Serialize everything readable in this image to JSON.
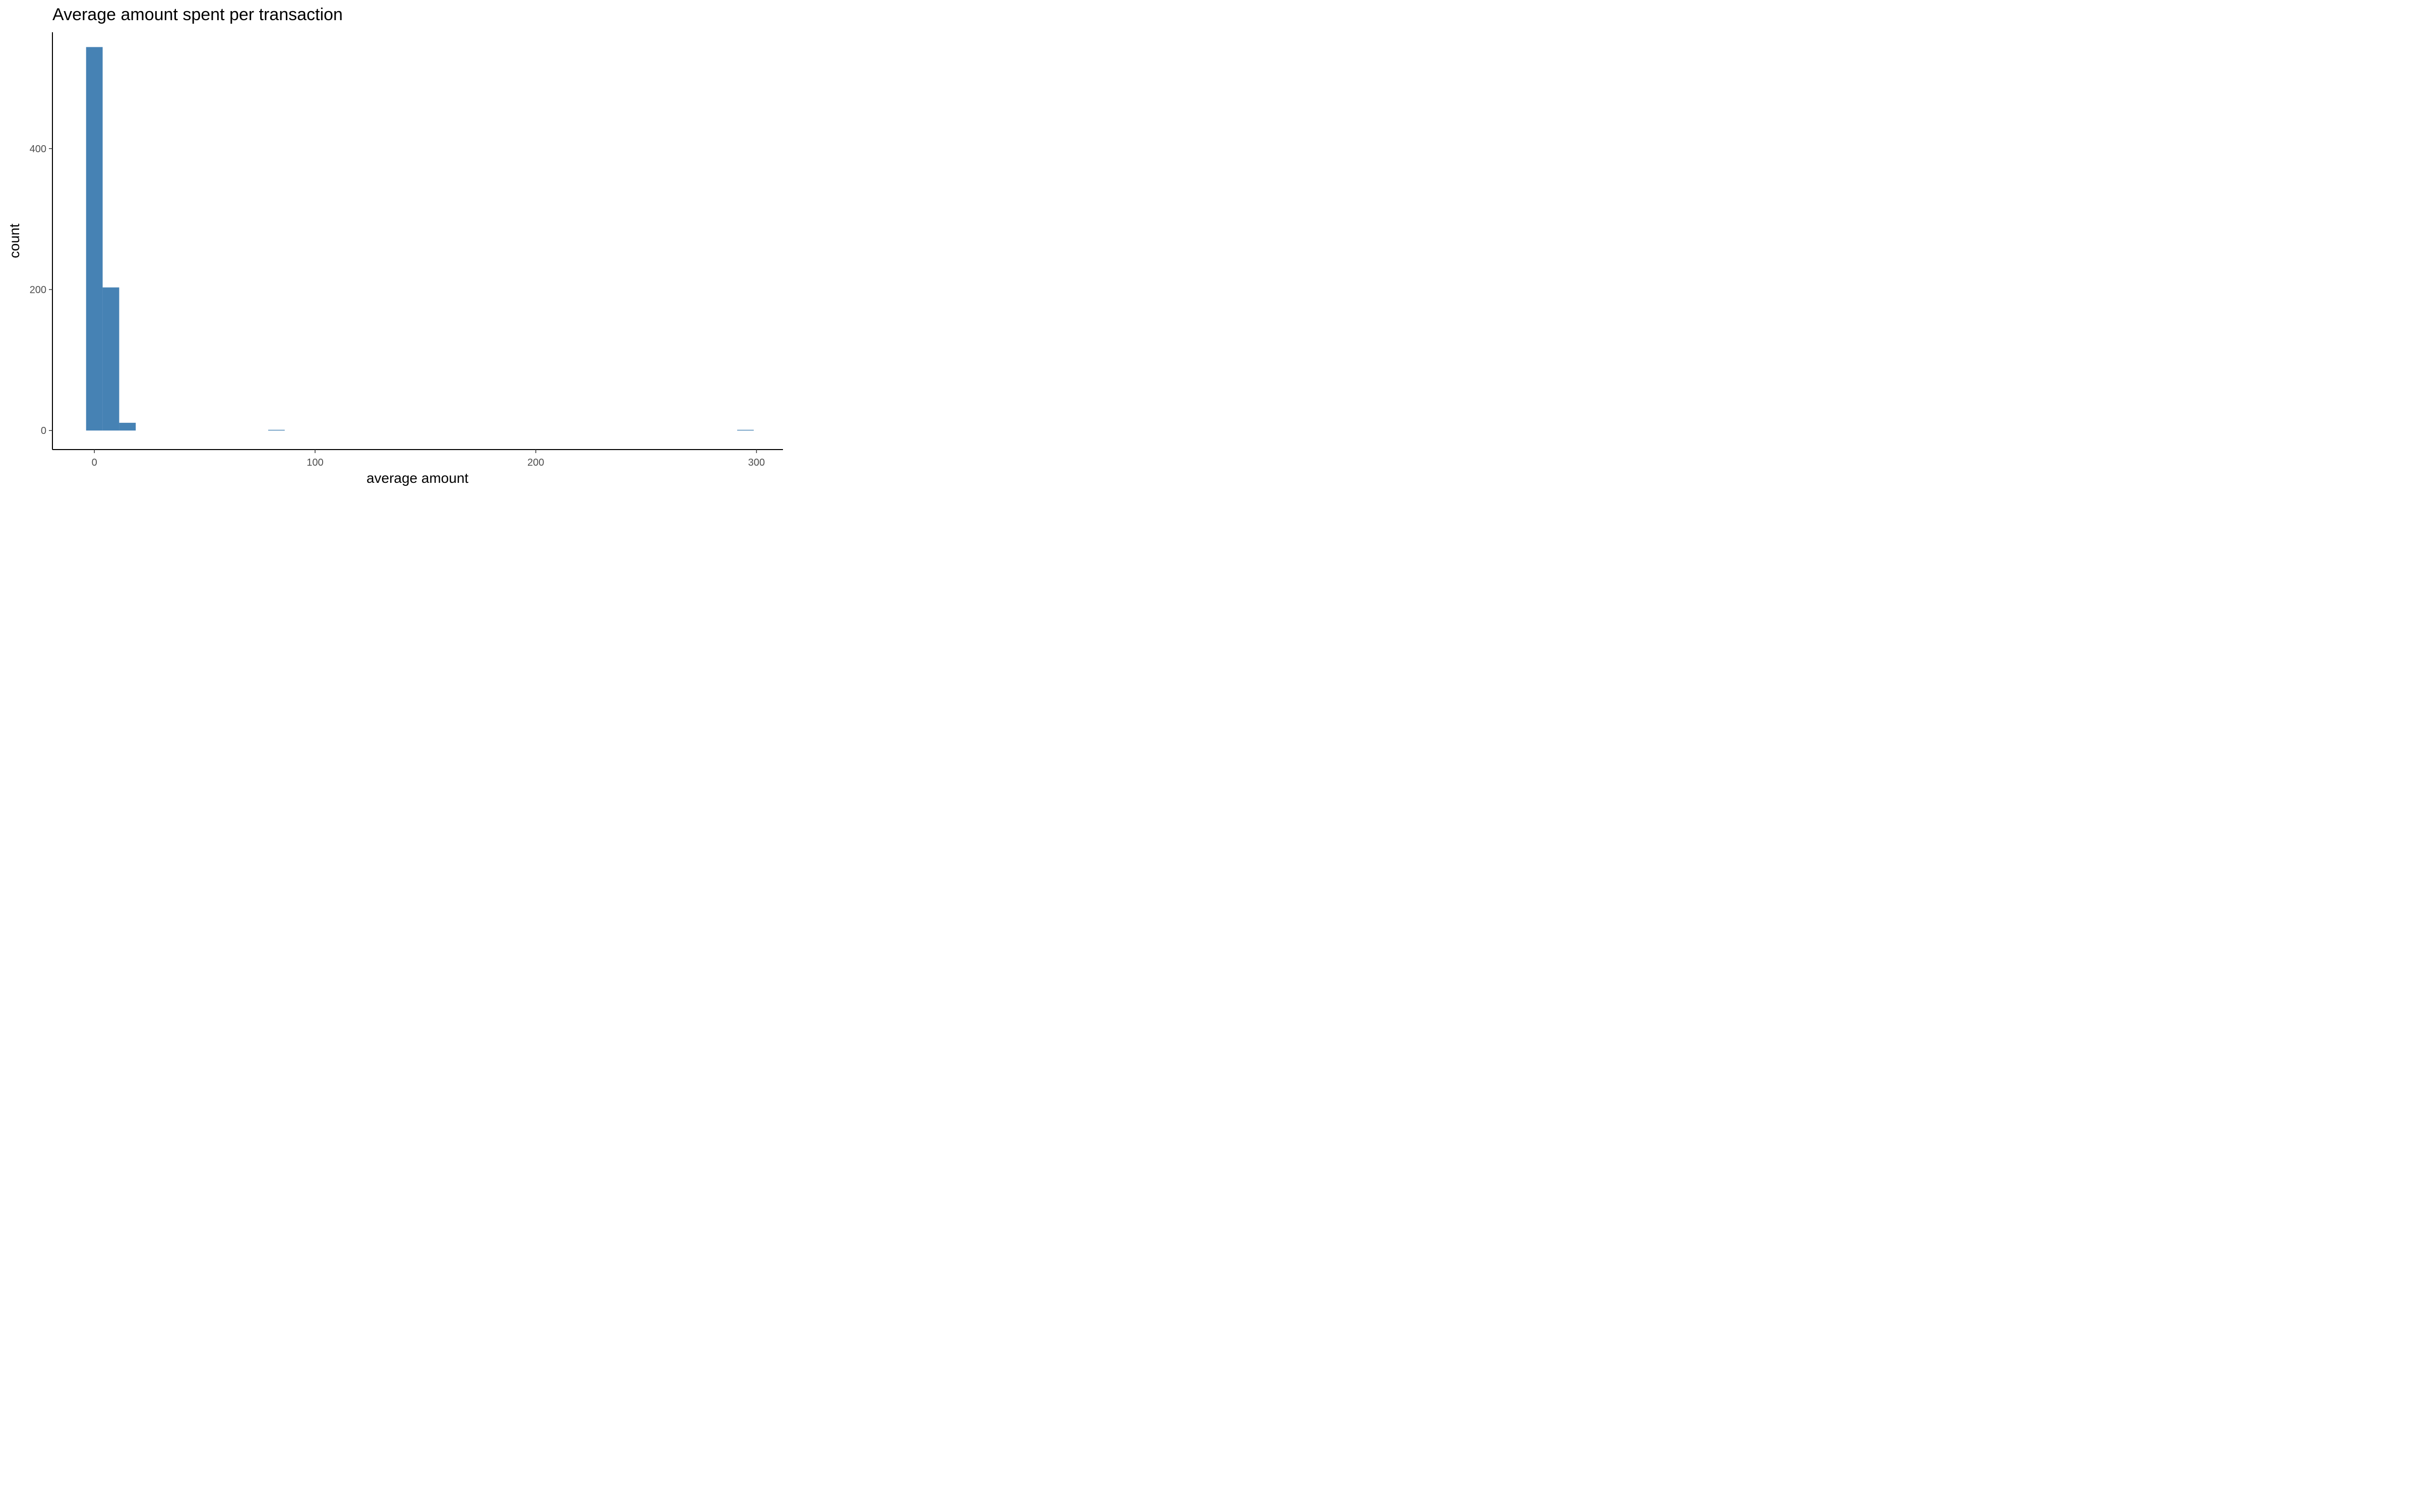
{
  "chart_data": {
    "type": "bar",
    "title": "Average amount spent per transaction",
    "xlabel": "average amount",
    "ylabel": "count",
    "bar_color": "#4682B4",
    "bin_width": 7.5,
    "bins": [
      {
        "x_start": -3.75,
        "x_end": 3.75,
        "count": 544
      },
      {
        "x_start": 3.75,
        "x_end": 11.25,
        "count": 203
      },
      {
        "x_start": 11.25,
        "x_end": 18.75,
        "count": 11
      },
      {
        "x_start": 78.75,
        "x_end": 86.25,
        "count": 1
      },
      {
        "x_start": 291.25,
        "x_end": 298.75,
        "count": 1
      }
    ],
    "xlim": [
      -19,
      312
    ],
    "ylim": [
      -27,
      565
    ],
    "x_ticks": [
      0,
      100,
      200,
      300
    ],
    "x_tick_labels": [
      "0",
      "100",
      "200",
      "300"
    ],
    "y_ticks": [
      0,
      200,
      400
    ],
    "y_tick_labels": [
      "0",
      "200",
      "400"
    ],
    "grid": false,
    "legend": "none"
  }
}
